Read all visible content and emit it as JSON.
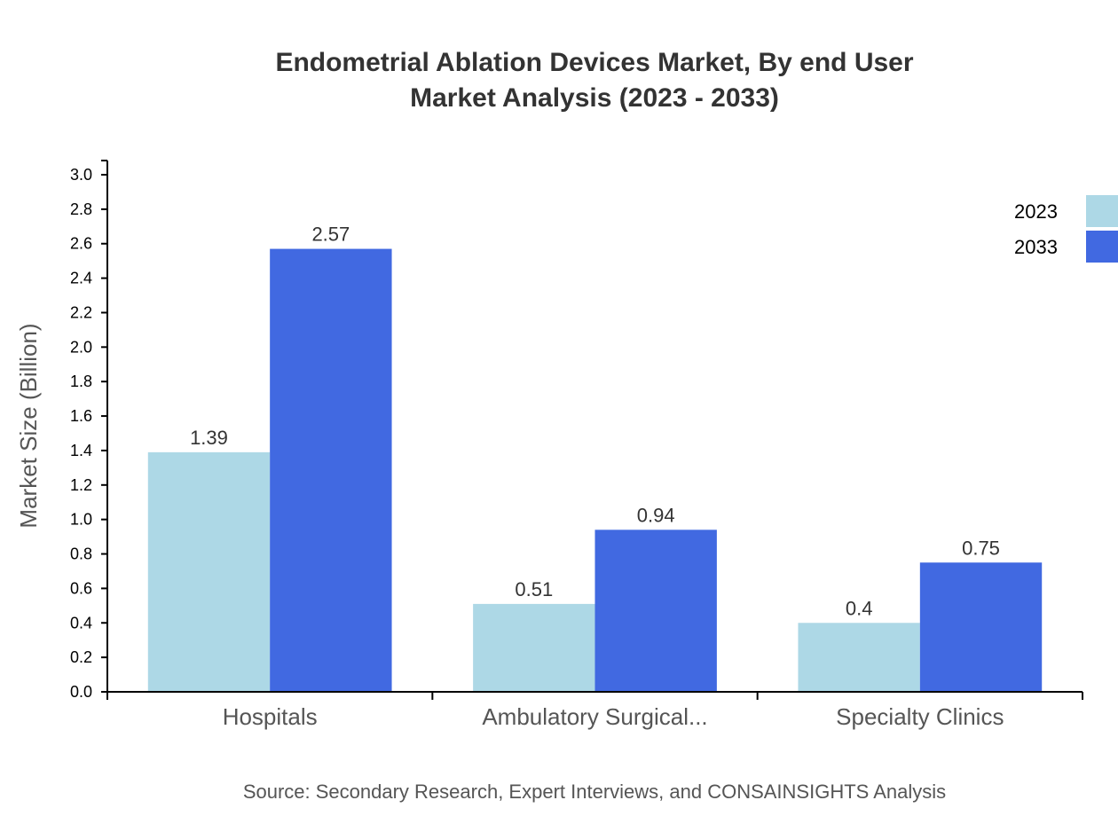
{
  "chart_data": {
    "type": "bar",
    "title": [
      "Endometrial Ablation Devices Market, By end User",
      "Market Analysis (2023 - 2033)"
    ],
    "ylabel": "Market Size (Billion)",
    "xlabel": "",
    "categories": [
      "Hospitals",
      "Ambulatory Surgical...",
      "Specialty Clinics"
    ],
    "series": [
      {
        "name": "2023",
        "color": "#add8e6",
        "values": [
          1.39,
          0.51,
          0.4
        ],
        "labels": [
          "1.39",
          "0.51",
          "0.4"
        ]
      },
      {
        "name": "2033",
        "color": "#4169e1",
        "values": [
          2.57,
          0.94,
          0.75
        ],
        "labels": [
          "2.57",
          "0.94",
          "0.75"
        ]
      }
    ],
    "ylim": [
      0,
      3.0
    ],
    "yticks": [
      "0.0",
      "0.2",
      "0.4",
      "0.6",
      "0.8",
      "1.0",
      "1.2",
      "1.4",
      "1.6",
      "1.8",
      "2.0",
      "2.2",
      "2.4",
      "2.6",
      "2.8",
      "3.0"
    ],
    "grid": false,
    "legend": "top-right",
    "source": "Source: Secondary Research, Expert Interviews, and CONSAINSIGHTS Analysis"
  }
}
